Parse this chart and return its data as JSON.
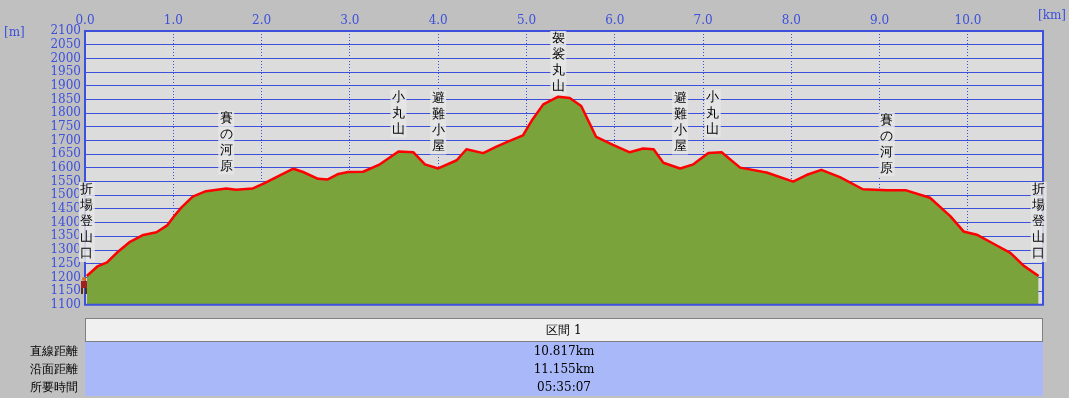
{
  "chart_data": {
    "type": "area",
    "xlabel": "[km]",
    "ylabel": "[m]",
    "x": [
      0.02,
      0.14,
      0.25,
      0.36,
      0.51,
      0.66,
      0.81,
      0.93,
      1.0,
      1.09,
      1.22,
      1.37,
      1.6,
      1.71,
      1.9,
      2.04,
      2.19,
      2.36,
      2.47,
      2.64,
      2.75,
      2.87,
      2.98,
      3.15,
      3.34,
      3.55,
      3.72,
      3.85,
      4.0,
      4.21,
      4.32,
      4.51,
      4.66,
      4.81,
      4.96,
      5.06,
      5.19,
      5.36,
      5.49,
      5.62,
      5.79,
      5.98,
      6.17,
      6.32,
      6.44,
      6.55,
      6.74,
      6.89,
      7.06,
      7.21,
      7.42,
      7.72,
      8.02,
      8.17,
      8.34,
      8.55,
      8.81,
      9.08,
      9.3,
      9.57,
      9.8,
      9.95,
      10.1,
      10.29,
      10.48,
      10.63,
      10.8
    ],
    "series": [
      {
        "color": "#7aa33c",
        "values": [
          1205,
          1240,
          1255,
          1290,
          1330,
          1355,
          1365,
          1390,
          1420,
          1455,
          1495,
          1515,
          1525,
          1520,
          1525,
          1545,
          1570,
          1597,
          1585,
          1560,
          1558,
          1578,
          1585,
          1586,
          1613,
          1660,
          1657,
          1613,
          1598,
          1628,
          1668,
          1654,
          1678,
          1699,
          1719,
          1773,
          1832,
          1860,
          1855,
          1826,
          1713,
          1684,
          1657,
          1671,
          1668,
          1619,
          1598,
          1613,
          1654,
          1657,
          1601,
          1583,
          1550,
          1574,
          1593,
          1566,
          1522,
          1518,
          1518,
          1491,
          1424,
          1368,
          1356,
          1323,
          1290,
          1243,
          1205
        ]
      },
      {
        "type": "line",
        "color": "#ff0000",
        "values": [
          1205,
          1240,
          1255,
          1290,
          1330,
          1355,
          1365,
          1390,
          1420,
          1455,
          1495,
          1515,
          1525,
          1520,
          1525,
          1545,
          1570,
          1597,
          1585,
          1560,
          1558,
          1578,
          1585,
          1586,
          1613,
          1660,
          1657,
          1613,
          1598,
          1628,
          1668,
          1654,
          1678,
          1699,
          1719,
          1773,
          1832,
          1860,
          1855,
          1826,
          1713,
          1684,
          1657,
          1671,
          1668,
          1619,
          1598,
          1613,
          1654,
          1657,
          1601,
          1583,
          1550,
          1574,
          1593,
          1566,
          1522,
          1518,
          1518,
          1491,
          1424,
          1368,
          1356,
          1323,
          1290,
          1243,
          1205
        ]
      }
    ],
    "xlim": [
      0,
      10.85
    ],
    "ylim": [
      1100,
      2100
    ],
    "xticks": [
      {
        "value": 0,
        "label": "0.0"
      },
      {
        "value": 1,
        "label": "1.0"
      },
      {
        "value": 2,
        "label": "2.0"
      },
      {
        "value": 3,
        "label": "3.0"
      },
      {
        "value": 4,
        "label": "4.0"
      },
      {
        "value": 5,
        "label": "5.0"
      },
      {
        "value": 6,
        "label": "6.0"
      },
      {
        "value": 7,
        "label": "7.0"
      },
      {
        "value": 8,
        "label": "8.0"
      },
      {
        "value": 9,
        "label": "9.0"
      },
      {
        "value": 10,
        "label": "10.0"
      }
    ],
    "yticks": [
      1100,
      1150,
      1200,
      1250,
      1300,
      1350,
      1400,
      1450,
      1500,
      1550,
      1600,
      1650,
      1700,
      1750,
      1800,
      1850,
      1900,
      1950,
      2000,
      2050,
      2100
    ],
    "grid": true,
    "annotations": [
      {
        "text": "折場登山口",
        "x": 0.02,
        "y": 1205
      },
      {
        "text": "賽の河原",
        "x": 1.6,
        "y": 1525
      },
      {
        "text": "小丸山",
        "x": 3.55,
        "y": 1660
      },
      {
        "text": "避難小屋",
        "x": 4.0,
        "y": 1598
      },
      {
        "text": "袈裟丸山",
        "x": 5.36,
        "y": 1860
      },
      {
        "text": "避難小屋",
        "x": 6.74,
        "y": 1598
      },
      {
        "text": "小丸山",
        "x": 7.11,
        "y": 1660
      },
      {
        "text": "賽の河原",
        "x": 9.08,
        "y": 1518
      },
      {
        "text": "折場登山口",
        "x": 10.8,
        "y": 1205
      },
      "区間 1",
      "直線距離",
      "10.817km",
      "沿面距離",
      "11.155km",
      "所要時間",
      "05:35:07"
    ]
  }
}
